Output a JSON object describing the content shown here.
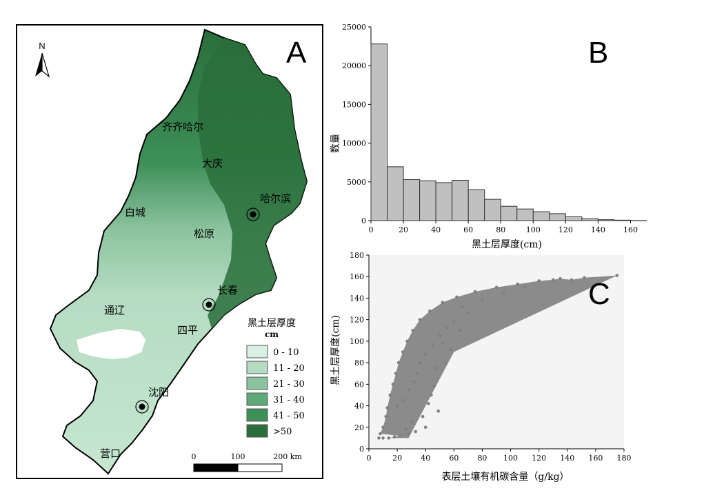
{
  "panels": {
    "a": "A",
    "b": "B",
    "c": "C"
  },
  "map": {
    "north_label": "N",
    "cities": [
      {
        "name": "齐齐哈尔"
      },
      {
        "name": "大庆"
      },
      {
        "name": "哈尔滨"
      },
      {
        "name": "白城"
      },
      {
        "name": "松原"
      },
      {
        "name": "长春"
      },
      {
        "name": "通辽"
      },
      {
        "name": "四平"
      },
      {
        "name": "沈阳"
      },
      {
        "name": "营口"
      }
    ],
    "legend": {
      "title": "黑土层厚度",
      "unit": "cm",
      "classes": [
        {
          "label": "0 - 10",
          "color": "#d9efe1"
        },
        {
          "label": "11 - 20",
          "color": "#b5dcc2"
        },
        {
          "label": "21 - 30",
          "color": "#8cc39f"
        },
        {
          "label": "31 - 40",
          "color": "#5fa978"
        },
        {
          "label": "41 - 50",
          "color": "#3d8f58"
        },
        {
          "label": ">50",
          "color": "#2a6e3b"
        }
      ]
    },
    "scale_bar": {
      "ticks": [
        "0",
        "100",
        "200 km"
      ]
    }
  },
  "chart_data": [
    {
      "type": "bar",
      "panel": "B",
      "xlabel": "黑土层厚度(cm)",
      "ylabel": "数量",
      "xlim": [
        0,
        170
      ],
      "ylim": [
        0,
        25000
      ],
      "xticks": [
        "0",
        "20",
        "40",
        "60",
        "80",
        "100",
        "120",
        "140",
        "160"
      ],
      "yticks": [
        "0",
        "5000",
        "10000",
        "15000",
        "20000",
        "25000"
      ],
      "bin_width": 10,
      "bin_starts": [
        0,
        10,
        20,
        30,
        40,
        50,
        60,
        70,
        80,
        90,
        100,
        110,
        120,
        130,
        140,
        150
      ],
      "values": [
        22800,
        6950,
        5300,
        5150,
        4900,
        5200,
        4000,
        2750,
        1850,
        1500,
        1150,
        900,
        500,
        250,
        120,
        60
      ],
      "bar_color": "#c0c0c0"
    },
    {
      "type": "scatter",
      "panel": "C",
      "xlabel": "表层土壤有机碳含量（g/kg）",
      "ylabel": "黑土层厚度(cm)",
      "xlim": [
        0,
        180
      ],
      "ylim": [
        0,
        180
      ],
      "xticks": [
        "0",
        "20",
        "40",
        "60",
        "80",
        "100",
        "120",
        "140",
        "160",
        "180"
      ],
      "yticks": [
        "0",
        "20",
        "40",
        "60",
        "80",
        "100",
        "120",
        "140",
        "160",
        "180"
      ],
      "point_color": "#7f7f7f",
      "points": [
        [
          7,
          10
        ],
        [
          10,
          10
        ],
        [
          14,
          10
        ],
        [
          18,
          11
        ],
        [
          22,
          12
        ],
        [
          8,
          14
        ],
        [
          10,
          20
        ],
        [
          12,
          30
        ],
        [
          13,
          38
        ],
        [
          15,
          50
        ],
        [
          17,
          60
        ],
        [
          19,
          70
        ],
        [
          21,
          80
        ],
        [
          24,
          90
        ],
        [
          27,
          100
        ],
        [
          31,
          110
        ],
        [
          36,
          120
        ],
        [
          43,
          128
        ],
        [
          52,
          136
        ],
        [
          62,
          141
        ],
        [
          75,
          146
        ],
        [
          90,
          150
        ],
        [
          105,
          153
        ],
        [
          120,
          156
        ],
        [
          130,
          157
        ],
        [
          135,
          158
        ],
        [
          143,
          157
        ],
        [
          152,
          159
        ],
        [
          175,
          161
        ],
        [
          20,
          40
        ],
        [
          24,
          45
        ],
        [
          28,
          55
        ],
        [
          32,
          62
        ],
        [
          34,
          70
        ],
        [
          36,
          80
        ],
        [
          40,
          88
        ],
        [
          45,
          96
        ],
        [
          50,
          105
        ],
        [
          55,
          112
        ],
        [
          60,
          118
        ],
        [
          46,
          58
        ],
        [
          42,
          42
        ],
        [
          40,
          20
        ],
        [
          28,
          14
        ],
        [
          49,
          35
        ],
        [
          38,
          30
        ],
        [
          44,
          50
        ],
        [
          54,
          80
        ],
        [
          58,
          92
        ],
        [
          64,
          110
        ],
        [
          70,
          126
        ],
        [
          80,
          138
        ],
        [
          95,
          145
        ],
        [
          110,
          150
        ],
        [
          66,
          132
        ],
        [
          30,
          25
        ],
        [
          26,
          18
        ],
        [
          33,
          16
        ],
        [
          48,
          75
        ],
        [
          52,
          98
        ]
      ]
    }
  ]
}
